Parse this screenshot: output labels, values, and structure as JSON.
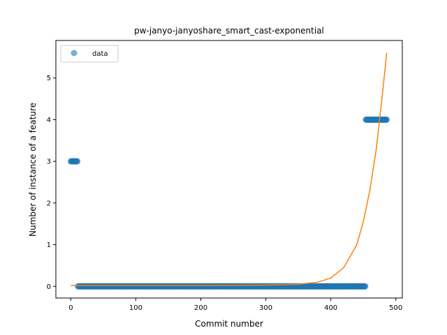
{
  "chart_data": {
    "type": "scatter",
    "title": "pw-janyo-janyoshare_smart_cast-exponential",
    "xlabel": "Commit number",
    "ylabel": "Number of instance of a feature",
    "xlim": [
      -23,
      510
    ],
    "ylim": [
      -0.28,
      5.9
    ],
    "xticks": [
      0,
      100,
      200,
      300,
      400,
      500
    ],
    "yticks": [
      0,
      1,
      2,
      3,
      4,
      5
    ],
    "grid": false,
    "legend": {
      "position": "top-left",
      "entries": [
        "data"
      ]
    },
    "colors": {
      "data": "#1f77b4",
      "fit": "#ff7f0e"
    },
    "series": [
      {
        "name": "data",
        "kind": "scatter",
        "segments": [
          {
            "x_start": 0,
            "x_end": 10,
            "y": 3
          },
          {
            "x_start": 11,
            "x_end": 453,
            "y": 0
          },
          {
            "x_start": 454,
            "x_end": 486,
            "y": 4
          }
        ]
      },
      {
        "kind": "line",
        "points": [
          [
            0,
            0.02
          ],
          [
            100,
            0.02
          ],
          [
            200,
            0.02
          ],
          [
            300,
            0.03
          ],
          [
            350,
            0.05
          ],
          [
            380,
            0.1
          ],
          [
            400,
            0.2
          ],
          [
            420,
            0.45
          ],
          [
            440,
            1.0
          ],
          [
            450,
            1.55
          ],
          [
            460,
            2.3
          ],
          [
            470,
            3.3
          ],
          [
            480,
            4.7
          ],
          [
            486,
            5.6
          ]
        ]
      }
    ]
  }
}
